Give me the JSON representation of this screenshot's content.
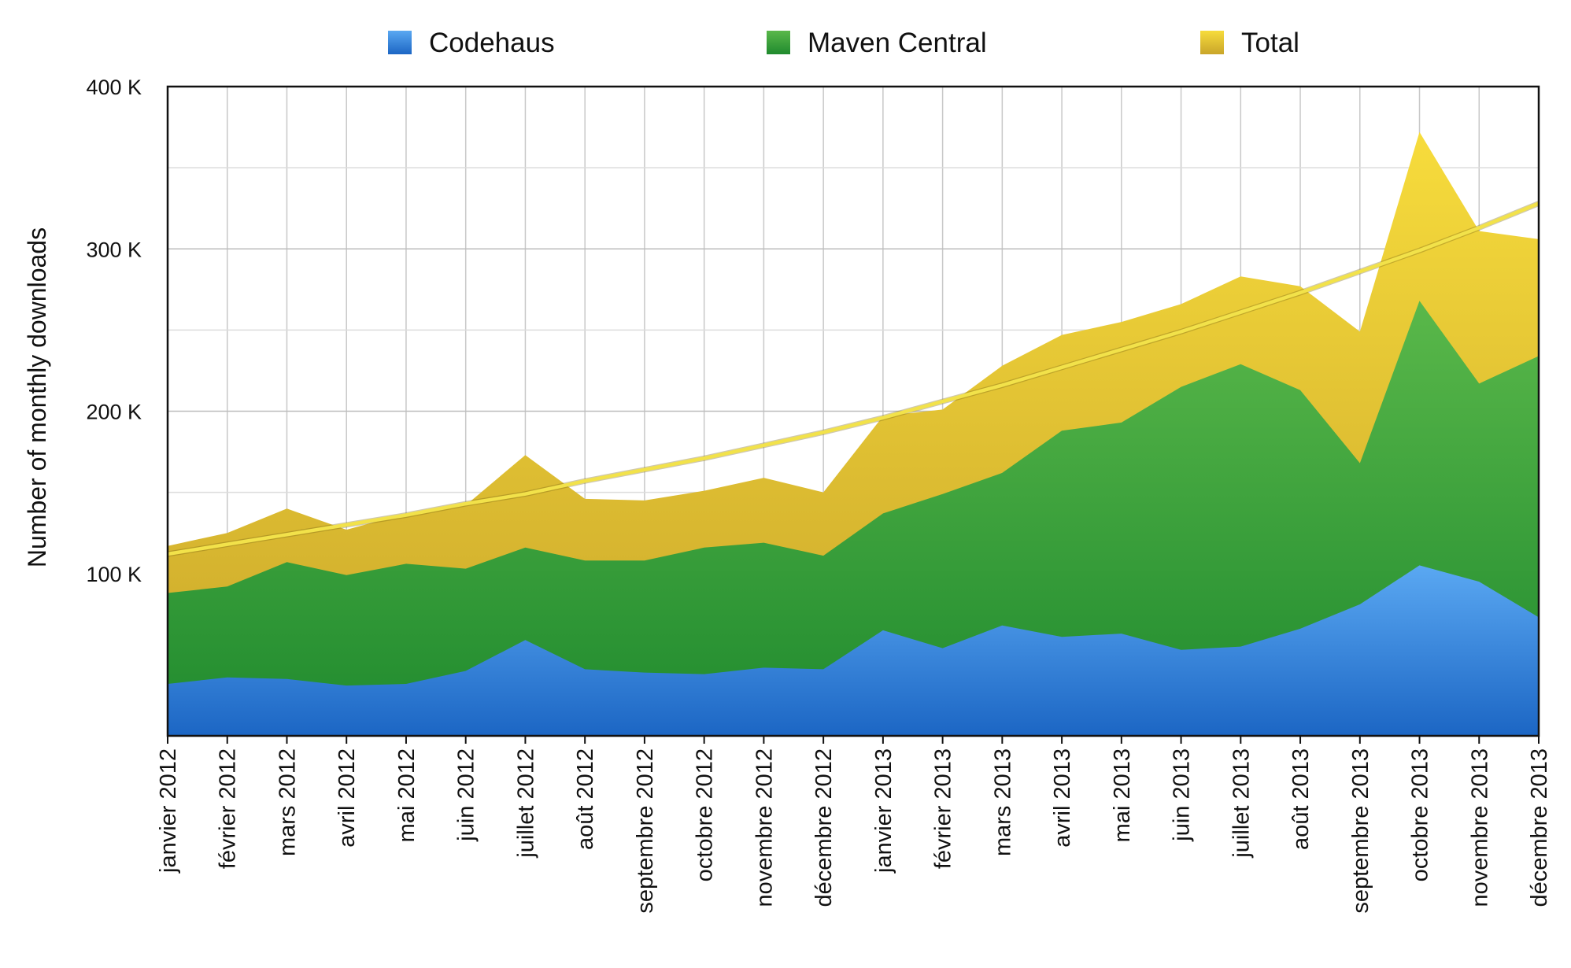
{
  "chart_data": {
    "type": "area",
    "ylabel": "Number of monthly downloads",
    "ylim": [
      0,
      400000
    ],
    "yticks": [
      {
        "value": 100000,
        "label": "100 K"
      },
      {
        "value": 200000,
        "label": "200 K"
      },
      {
        "value": 300000,
        "label": "300 K"
      },
      {
        "value": 400000,
        "label": "400 K"
      }
    ],
    "grid": true,
    "legend_position": "top",
    "categories": [
      "janvier 2012",
      "février 2012",
      "mars 2012",
      "avril 2012",
      "mai 2012",
      "juin 2012",
      "juillet 2012",
      "août 2012",
      "septembre 2012",
      "octobre 2012",
      "novembre 2012",
      "décembre 2012",
      "janvier 2013",
      "février 2013",
      "mars 2013",
      "avril 2013",
      "mai 2013",
      "juin 2013",
      "juillet 2013",
      "août 2013",
      "septembre 2013",
      "octobre 2013",
      "novembre 2013",
      "décembre 2013"
    ],
    "series": [
      {
        "name": "Codehaus",
        "color": "#3b8ee6",
        "values": [
          32000,
          36000,
          35000,
          31000,
          32000,
          40000,
          59000,
          41000,
          39000,
          38000,
          42000,
          41000,
          65000,
          54000,
          68000,
          61000,
          63000,
          53000,
          55000,
          66000,
          81000,
          105000,
          95000,
          73000
        ]
      },
      {
        "name": "Maven Central",
        "color": "#2f9e3a",
        "values": [
          56000,
          56000,
          72000,
          68000,
          74000,
          63000,
          57000,
          67000,
          69000,
          78000,
          77000,
          70000,
          72000,
          95000,
          94000,
          127000,
          130000,
          162000,
          174000,
          147000,
          87000,
          163000,
          122000,
          161000
        ]
      },
      {
        "name": "Total",
        "color": "#e2c02e",
        "values": [
          117000,
          125000,
          140000,
          127000,
          137000,
          142000,
          173000,
          146000,
          145000,
          151000,
          159000,
          150000,
          197000,
          201000,
          228000,
          247000,
          255000,
          266000,
          283000,
          277000,
          249000,
          372000,
          311000,
          306000
        ]
      }
    ],
    "trendline": {
      "values": [
        112000,
        118000,
        124000,
        130000,
        136000,
        143000,
        149000,
        157000,
        164000,
        171000,
        179000,
        187000,
        196000,
        206000,
        216000,
        227000,
        238000,
        249000,
        261000,
        273000,
        286000,
        299000,
        313000,
        328000
      ],
      "color": "#f2e24a"
    }
  }
}
